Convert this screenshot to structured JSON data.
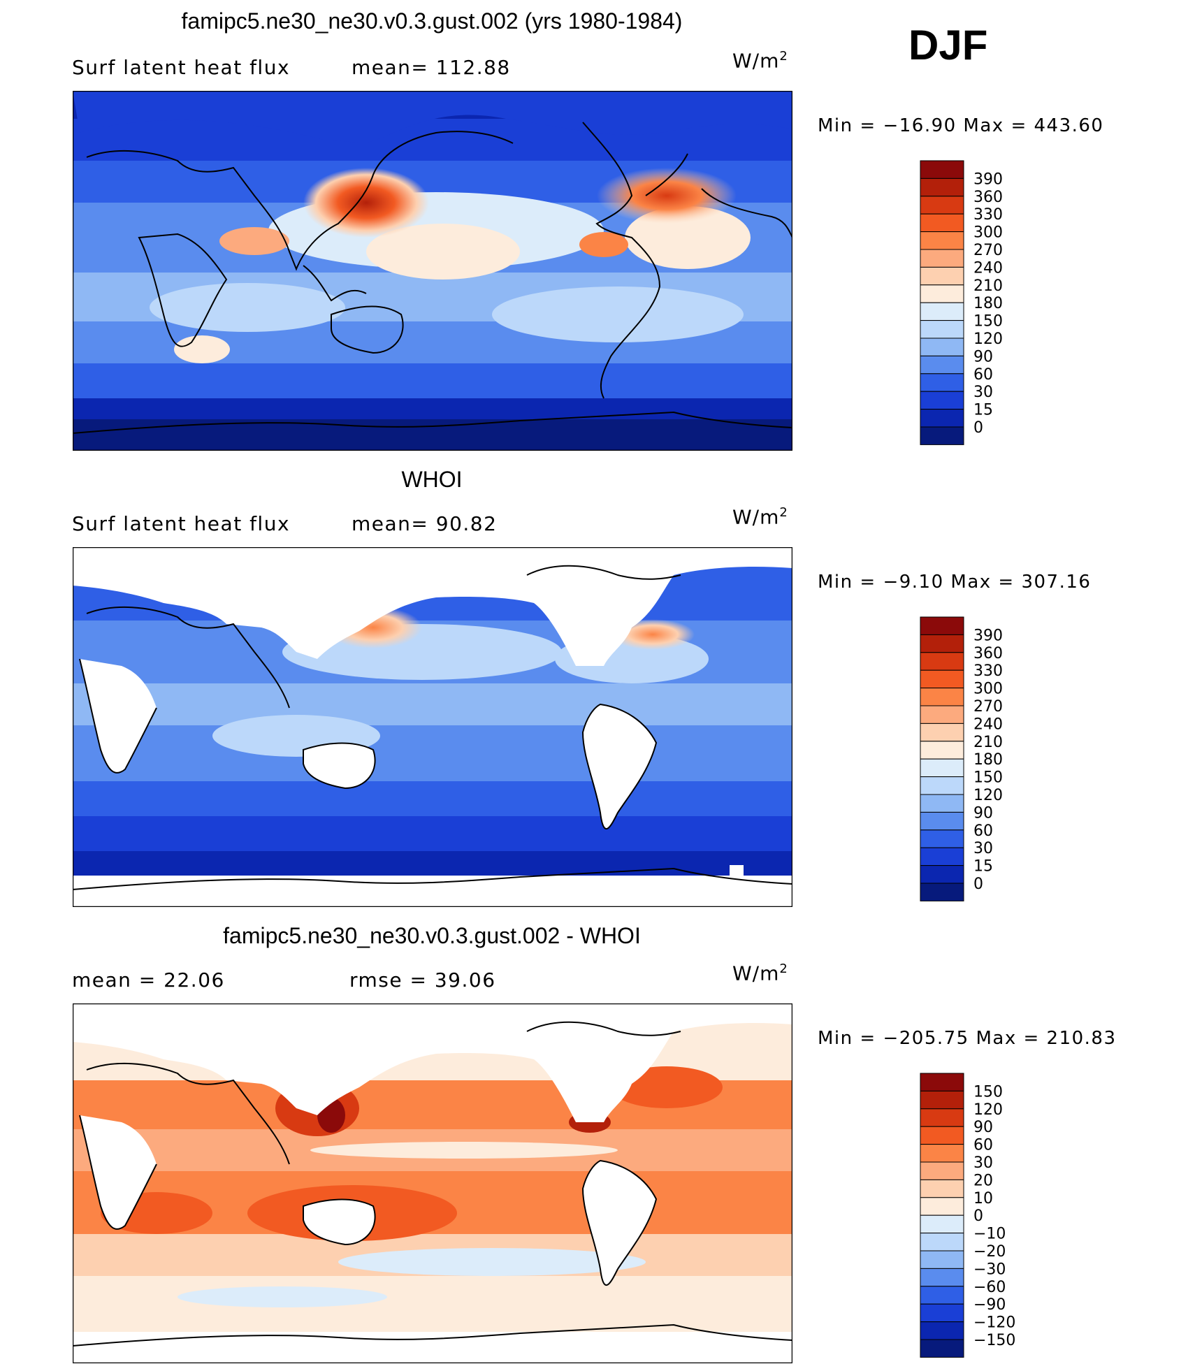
{
  "season": "DJF",
  "units_main": "W/m",
  "units_exp": "2",
  "panels": [
    {
      "title": "famipc5.ne30_ne30.v0.3.gust.002 (yrs 1980-1984)",
      "left_label": "Surf  latent  heat  flux",
      "right_label": "mean=  112.88",
      "minmax": "Min  =  −16.90  Max  =  443.60",
      "colorbar": {
        "labels": [
          "390",
          "360",
          "330",
          "300",
          "270",
          "240",
          "210",
          "180",
          "150",
          "120",
          "90",
          "60",
          "30",
          "15",
          "0"
        ],
        "colors": [
          "#8b0a0a",
          "#b3200a",
          "#d83a12",
          "#f25a22",
          "#fb8446",
          "#fcaa7e",
          "#fdd0b0",
          "#fdecdc",
          "#dcecfa",
          "#bcd8fa",
          "#8fb8f4",
          "#5a8cee",
          "#2f5fe6",
          "#1a3fd6",
          "#0b26b0",
          "#071a7c"
        ]
      }
    },
    {
      "title": "WHOI",
      "left_label": "Surf  latent  heat  flux",
      "right_label": "mean=   90.82",
      "minmax": "Min  =   −9.10  Max  =  307.16",
      "colorbar": {
        "labels": [
          "390",
          "360",
          "330",
          "300",
          "270",
          "240",
          "210",
          "180",
          "150",
          "120",
          "90",
          "60",
          "30",
          "15",
          "0"
        ],
        "colors": [
          "#8b0a0a",
          "#b3200a",
          "#d83a12",
          "#f25a22",
          "#fb8446",
          "#fcaa7e",
          "#fdd0b0",
          "#fdecdc",
          "#dcecfa",
          "#bcd8fa",
          "#8fb8f4",
          "#5a8cee",
          "#2f5fe6",
          "#1a3fd6",
          "#0b26b0",
          "#071a7c"
        ]
      }
    },
    {
      "title": "famipc5.ne30_ne30.v0.3.gust.002 - WHOI",
      "left_label": "mean  =    22.06",
      "right_label": "rmse  =    39.06",
      "minmax": "Min  =  −205.75  Max  =  210.83",
      "colorbar": {
        "labels": [
          "150",
          "120",
          "90",
          "60",
          "30",
          "20",
          "10",
          "0",
          "−10",
          "−20",
          "−30",
          "−60",
          "−90",
          "−120",
          "−150"
        ],
        "colors": [
          "#8b0a0a",
          "#b3200a",
          "#d83a12",
          "#f25a22",
          "#fb8446",
          "#fcaa7e",
          "#fdd0b0",
          "#fdecdc",
          "#dcecfa",
          "#bcd8fa",
          "#8fb8f4",
          "#5a8cee",
          "#2f5fe6",
          "#1a3fd6",
          "#0b26b0",
          "#071a7c"
        ]
      }
    }
  ]
}
